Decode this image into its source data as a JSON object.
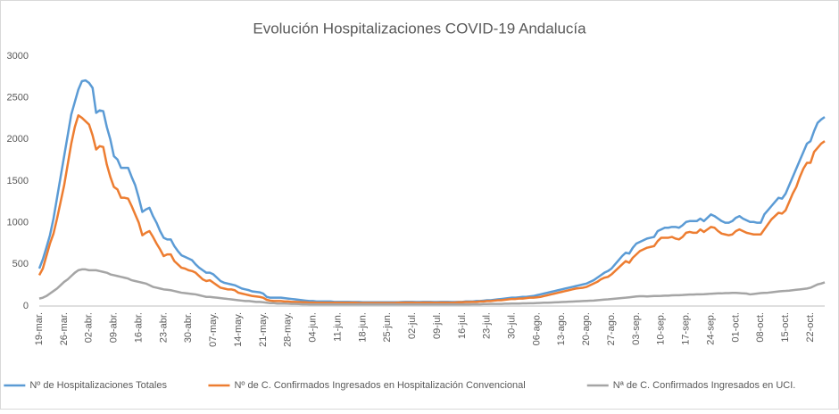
{
  "chart_data": {
    "type": "line",
    "title": "Evolución Hospitalizaciones COVID-19 Andalucía",
    "categories": [
      "19-mar.",
      null,
      null,
      null,
      null,
      null,
      null,
      "26-mar.",
      null,
      null,
      null,
      null,
      null,
      null,
      "02-abr.",
      null,
      null,
      null,
      null,
      null,
      null,
      "09-abr.",
      null,
      null,
      null,
      null,
      null,
      null,
      "16-abr.",
      null,
      null,
      null,
      null,
      null,
      null,
      "23-abr.",
      null,
      null,
      null,
      null,
      null,
      null,
      "30-abr.",
      null,
      null,
      null,
      null,
      null,
      null,
      "07-may.",
      null,
      null,
      null,
      null,
      null,
      null,
      "14-may.",
      null,
      null,
      null,
      null,
      null,
      null,
      "21-may.",
      null,
      null,
      null,
      null,
      null,
      null,
      "28-may.",
      null,
      null,
      null,
      null,
      null,
      null,
      "04-jun.",
      null,
      null,
      null,
      null,
      null,
      null,
      "11-jun.",
      null,
      null,
      null,
      null,
      null,
      null,
      "18-jun.",
      null,
      null,
      null,
      null,
      null,
      null,
      "25-jun.",
      null,
      null,
      null,
      null,
      null,
      null,
      "02-jul.",
      null,
      null,
      null,
      null,
      null,
      null,
      "09-jul.",
      null,
      null,
      null,
      null,
      null,
      null,
      "16-jul.",
      null,
      null,
      null,
      null,
      null,
      null,
      "23-jul.",
      null,
      null,
      null,
      null,
      null,
      null,
      "30-jul.",
      null,
      null,
      null,
      null,
      null,
      null,
      "06-ago.",
      null,
      null,
      null,
      null,
      null,
      null,
      "13-ago.",
      null,
      null,
      null,
      null,
      null,
      null,
      "20-ago.",
      null,
      null,
      null,
      null,
      null,
      null,
      "27-ago.",
      null,
      null,
      null,
      null,
      null,
      null,
      "03-sep.",
      null,
      null,
      null,
      null,
      null,
      null,
      "10-sep.",
      null,
      null,
      null,
      null,
      null,
      null,
      "17-sep.",
      null,
      null,
      null,
      null,
      null,
      null,
      "24-sep.",
      null,
      null,
      null,
      null,
      null,
      null,
      "01-oct.",
      null,
      null,
      null,
      null,
      null,
      null,
      "08-oct.",
      null,
      null,
      null,
      null,
      null,
      null,
      "15-oct.",
      null,
      null,
      null,
      null,
      null,
      null,
      "22-oct.",
      null,
      null,
      null,
      null
    ],
    "series": [
      {
        "name": "Nº de Hospitalizaciones Totales",
        "color": "#5b9bd5",
        "values": [
          450,
          560,
          700,
          850,
          1050,
          1300,
          1550,
          1800,
          2050,
          2300,
          2450,
          2600,
          2700,
          2710,
          2680,
          2620,
          2320,
          2350,
          2340,
          2150,
          2000,
          1800,
          1760,
          1660,
          1660,
          1660,
          1550,
          1450,
          1300,
          1130,
          1160,
          1180,
          1080,
          1000,
          900,
          820,
          800,
          800,
          720,
          660,
          610,
          590,
          570,
          550,
          500,
          460,
          430,
          400,
          400,
          380,
          340,
          300,
          280,
          270,
          260,
          250,
          230,
          210,
          200,
          190,
          175,
          170,
          165,
          150,
          110,
          100,
          100,
          100,
          100,
          95,
          90,
          85,
          80,
          75,
          70,
          65,
          60,
          60,
          55,
          55,
          55,
          55,
          55,
          50,
          50,
          50,
          50,
          50,
          48,
          48,
          48,
          46,
          46,
          45,
          45,
          45,
          45,
          45,
          45,
          45,
          46,
          46,
          48,
          50,
          50,
          50,
          48,
          48,
          50,
          50,
          50,
          48,
          48,
          50,
          50,
          50,
          48,
          48,
          50,
          50,
          55,
          55,
          55,
          60,
          60,
          65,
          70,
          70,
          75,
          80,
          85,
          90,
          95,
          100,
          100,
          105,
          110,
          110,
          115,
          120,
          130,
          140,
          150,
          160,
          170,
          180,
          190,
          200,
          210,
          220,
          230,
          240,
          250,
          260,
          270,
          290,
          310,
          340,
          370,
          400,
          420,
          450,
          500,
          550,
          600,
          640,
          630,
          700,
          750,
          770,
          790,
          810,
          820,
          830,
          900,
          920,
          940,
          940,
          950,
          950,
          940,
          970,
          1010,
          1020,
          1020,
          1020,
          1050,
          1020,
          1060,
          1100,
          1080,
          1050,
          1020,
          1000,
          1000,
          1020,
          1060,
          1080,
          1050,
          1030,
          1010,
          1010,
          1000,
          1000,
          1100,
          1150,
          1200,
          1250,
          1300,
          1290,
          1350,
          1450,
          1550,
          1650,
          1750,
          1850,
          1950,
          1980,
          2100,
          2200,
          2240,
          2270
        ]
      },
      {
        "name": "Nº de C. Confirmados Ingresados en Hospitalización Convencional",
        "color": "#ed7d31",
        "values": [
          370,
          450,
          600,
          750,
          870,
          1050,
          1250,
          1450,
          1700,
          1950,
          2150,
          2290,
          2260,
          2220,
          2180,
          2050,
          1880,
          1920,
          1910,
          1700,
          1550,
          1430,
          1400,
          1300,
          1300,
          1290,
          1200,
          1100,
          1000,
          850,
          880,
          900,
          830,
          750,
          680,
          600,
          620,
          620,
          540,
          500,
          460,
          450,
          430,
          420,
          400,
          360,
          320,
          300,
          310,
          280,
          250,
          220,
          210,
          200,
          200,
          190,
          160,
          150,
          140,
          130,
          120,
          115,
          110,
          100,
          75,
          65,
          60,
          60,
          60,
          55,
          55,
          50,
          50,
          48,
          45,
          45,
          42,
          42,
          40,
          40,
          40,
          40,
          40,
          40,
          40,
          40,
          40,
          40,
          40,
          40,
          38,
          38,
          38,
          38,
          38,
          38,
          38,
          38,
          38,
          38,
          38,
          40,
          40,
          42,
          42,
          42,
          40,
          40,
          42,
          42,
          42,
          40,
          40,
          42,
          42,
          42,
          40,
          42,
          45,
          45,
          48,
          48,
          50,
          50,
          55,
          55,
          60,
          60,
          65,
          70,
          70,
          75,
          80,
          85,
          85,
          90,
          90,
          95,
          100,
          100,
          105,
          110,
          120,
          130,
          140,
          150,
          160,
          170,
          180,
          190,
          200,
          210,
          215,
          220,
          230,
          250,
          270,
          290,
          320,
          340,
          350,
          380,
          420,
          460,
          500,
          540,
          520,
          580,
          620,
          660,
          680,
          700,
          710,
          720,
          780,
          820,
          820,
          820,
          830,
          810,
          800,
          830,
          880,
          890,
          880,
          880,
          920,
          890,
          920,
          950,
          940,
          900,
          870,
          860,
          850,
          860,
          900,
          920,
          900,
          880,
          870,
          860,
          860,
          860,
          920,
          980,
          1040,
          1080,
          1120,
          1110,
          1150,
          1250,
          1350,
          1430,
          1550,
          1650,
          1720,
          1720,
          1850,
          1900,
          1950,
          1980
        ]
      },
      {
        "name": "Nª de C. Confirmados Ingresados en UCI.",
        "color": "#a5a5a5",
        "values": [
          90,
          100,
          120,
          150,
          180,
          210,
          250,
          290,
          320,
          360,
          400,
          430,
          440,
          440,
          430,
          430,
          430,
          420,
          410,
          400,
          380,
          370,
          360,
          350,
          340,
          330,
          310,
          300,
          290,
          280,
          270,
          250,
          230,
          220,
          210,
          200,
          195,
          190,
          180,
          170,
          160,
          155,
          150,
          145,
          140,
          130,
          120,
          110,
          110,
          105,
          100,
          95,
          90,
          85,
          80,
          75,
          70,
          65,
          60,
          60,
          55,
          50,
          50,
          45,
          40,
          35,
          35,
          30,
          30,
          30,
          28,
          26,
          25,
          24,
          22,
          22,
          20,
          20,
          20,
          20,
          20,
          20,
          20,
          20,
          20,
          20,
          20,
          20,
          20,
          20,
          20,
          20,
          20,
          20,
          20,
          20,
          20,
          20,
          20,
          20,
          20,
          20,
          20,
          20,
          20,
          20,
          20,
          20,
          20,
          20,
          20,
          20,
          20,
          20,
          20,
          20,
          20,
          20,
          20,
          20,
          20,
          20,
          22,
          22,
          22,
          24,
          24,
          25,
          25,
          26,
          26,
          28,
          28,
          30,
          30,
          30,
          32,
          32,
          34,
          34,
          36,
          38,
          40,
          40,
          42,
          44,
          46,
          48,
          50,
          52,
          54,
          56,
          58,
          60,
          62,
          64,
          66,
          70,
          74,
          78,
          80,
          84,
          88,
          92,
          96,
          100,
          105,
          110,
          115,
          118,
          118,
          115,
          118,
          120,
          120,
          122,
          125,
          125,
          128,
          130,
          130,
          132,
          135,
          138,
          138,
          140,
          140,
          142,
          145,
          148,
          150,
          152,
          152,
          155,
          155,
          158,
          158,
          155,
          152,
          150,
          140,
          145,
          150,
          155,
          158,
          160,
          165,
          170,
          175,
          180,
          182,
          185,
          190,
          195,
          200,
          205,
          210,
          220,
          240,
          260,
          270,
          285
        ]
      }
    ],
    "ylim": [
      0,
      3000
    ],
    "yticks": [
      0,
      500,
      1000,
      1500,
      2000,
      2500,
      3000
    ],
    "grid": false,
    "legend": "bottom"
  }
}
